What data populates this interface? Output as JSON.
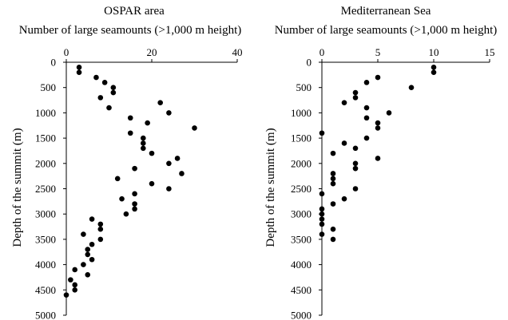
{
  "chart_data": [
    {
      "type": "scatter",
      "title": "OSPAR area",
      "xlabel": "Number of large seamounts (>1,000 m height)",
      "ylabel": "Depth of the summit (m)",
      "xlim": [
        0,
        40
      ],
      "ylim": [
        0,
        5000
      ],
      "y_reversed": true,
      "x_axis_position": "top",
      "grid": false,
      "legend": "none",
      "marker_color": "#000000",
      "xticks": [
        "0",
        "20",
        "40"
      ],
      "yticks": [
        "0",
        "500",
        "1000",
        "1500",
        "2000",
        "2500",
        "3000",
        "3500",
        "4000",
        "4500",
        "5000"
      ],
      "points": [
        {
          "x": 3,
          "y": 100
        },
        {
          "x": 3,
          "y": 200
        },
        {
          "x": 7,
          "y": 300
        },
        {
          "x": 9,
          "y": 400
        },
        {
          "x": 11,
          "y": 500
        },
        {
          "x": 11,
          "y": 600
        },
        {
          "x": 8,
          "y": 700
        },
        {
          "x": 22,
          "y": 800
        },
        {
          "x": 10,
          "y": 900
        },
        {
          "x": 24,
          "y": 1000
        },
        {
          "x": 15,
          "y": 1100
        },
        {
          "x": 19,
          "y": 1200
        },
        {
          "x": 30,
          "y": 1300
        },
        {
          "x": 15,
          "y": 1400
        },
        {
          "x": 18,
          "y": 1500
        },
        {
          "x": 18,
          "y": 1600
        },
        {
          "x": 18,
          "y": 1700
        },
        {
          "x": 20,
          "y": 1800
        },
        {
          "x": 26,
          "y": 1900
        },
        {
          "x": 24,
          "y": 2000
        },
        {
          "x": 16,
          "y": 2100
        },
        {
          "x": 27,
          "y": 2200
        },
        {
          "x": 12,
          "y": 2300
        },
        {
          "x": 20,
          "y": 2400
        },
        {
          "x": 24,
          "y": 2500
        },
        {
          "x": 16,
          "y": 2600
        },
        {
          "x": 13,
          "y": 2700
        },
        {
          "x": 16,
          "y": 2800
        },
        {
          "x": 16,
          "y": 2900
        },
        {
          "x": 14,
          "y": 3000
        },
        {
          "x": 6,
          "y": 3100
        },
        {
          "x": 8,
          "y": 3200
        },
        {
          "x": 8,
          "y": 3300
        },
        {
          "x": 4,
          "y": 3400
        },
        {
          "x": 8,
          "y": 3500
        },
        {
          "x": 6,
          "y": 3600
        },
        {
          "x": 5,
          "y": 3700
        },
        {
          "x": 5,
          "y": 3800
        },
        {
          "x": 6,
          "y": 3900
        },
        {
          "x": 4,
          "y": 4000
        },
        {
          "x": 2,
          "y": 4100
        },
        {
          "x": 5,
          "y": 4200
        },
        {
          "x": 1,
          "y": 4300
        },
        {
          "x": 2,
          "y": 4400
        },
        {
          "x": 2,
          "y": 4500
        },
        {
          "x": 0,
          "y": 4600
        }
      ]
    },
    {
      "type": "scatter",
      "title": "Mediterranean Sea",
      "xlabel": "Number of large seamounts (>1,000 m height)",
      "ylabel": "Depth of the summit (m)",
      "xlim": [
        0,
        15
      ],
      "ylim": [
        0,
        5000
      ],
      "y_reversed": true,
      "x_axis_position": "top",
      "grid": false,
      "legend": "none",
      "marker_color": "#000000",
      "xticks": [
        "0",
        "5",
        "10",
        "15"
      ],
      "yticks": [
        "0",
        "500",
        "1000",
        "1500",
        "2000",
        "2500",
        "3000",
        "3500",
        "4000",
        "4500",
        "5000"
      ],
      "points": [
        {
          "x": 10,
          "y": 100
        },
        {
          "x": 10,
          "y": 200
        },
        {
          "x": 5,
          "y": 300
        },
        {
          "x": 4,
          "y": 400
        },
        {
          "x": 8,
          "y": 500
        },
        {
          "x": 3,
          "y": 600
        },
        {
          "x": 3,
          "y": 700
        },
        {
          "x": 2,
          "y": 800
        },
        {
          "x": 4,
          "y": 900
        },
        {
          "x": 6,
          "y": 1000
        },
        {
          "x": 4,
          "y": 1100
        },
        {
          "x": 5,
          "y": 1200
        },
        {
          "x": 5,
          "y": 1300
        },
        {
          "x": 0,
          "y": 1400
        },
        {
          "x": 4,
          "y": 1500
        },
        {
          "x": 2,
          "y": 1600
        },
        {
          "x": 3,
          "y": 1700
        },
        {
          "x": 1,
          "y": 1800
        },
        {
          "x": 5,
          "y": 1900
        },
        {
          "x": 3,
          "y": 2000
        },
        {
          "x": 3,
          "y": 2100
        },
        {
          "x": 1,
          "y": 2200
        },
        {
          "x": 1,
          "y": 2300
        },
        {
          "x": 1,
          "y": 2400
        },
        {
          "x": 3,
          "y": 2500
        },
        {
          "x": 0,
          "y": 2600
        },
        {
          "x": 2,
          "y": 2700
        },
        {
          "x": 1,
          "y": 2800
        },
        {
          "x": 0,
          "y": 2900
        },
        {
          "x": 0,
          "y": 3000
        },
        {
          "x": 0,
          "y": 3100
        },
        {
          "x": 0,
          "y": 3200
        },
        {
          "x": 1,
          "y": 3300
        },
        {
          "x": 0,
          "y": 3400
        },
        {
          "x": 1,
          "y": 3500
        }
      ]
    }
  ]
}
